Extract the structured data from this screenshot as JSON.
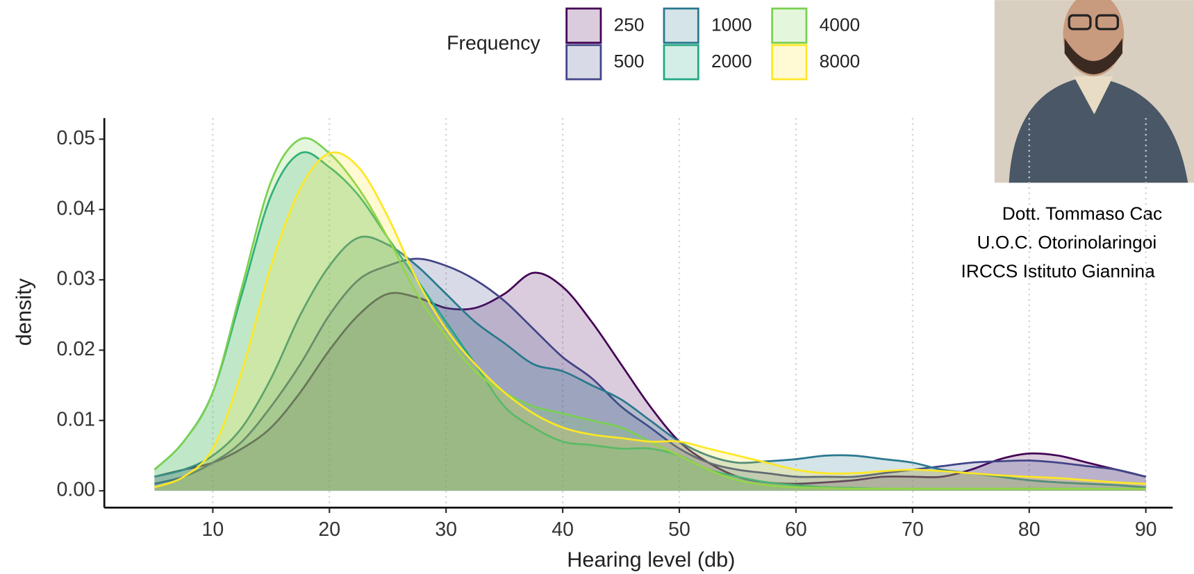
{
  "chart_data": {
    "type": "density",
    "x_label": "Hearing level (db)",
    "y_label": "density",
    "legend_title": "Frequency",
    "legend_position": "top",
    "x": [
      5,
      7.5,
      10,
      12.5,
      15,
      17.5,
      20,
      22.5,
      25,
      27.5,
      30,
      32.5,
      35,
      37.5,
      40,
      42.5,
      45,
      47.5,
      50,
      52.5,
      55,
      57.5,
      60,
      62.5,
      65,
      67.5,
      70,
      72.5,
      75,
      77.5,
      80,
      82.5,
      85,
      87.5,
      90
    ],
    "series": [
      {
        "name": "250",
        "color": "#440154",
        "values": [
          0.002,
          0.003,
          0.004,
          0.006,
          0.009,
          0.014,
          0.02,
          0.025,
          0.028,
          0.0275,
          0.026,
          0.026,
          0.028,
          0.031,
          0.029,
          0.024,
          0.018,
          0.012,
          0.007,
          0.004,
          0.002,
          0.0012,
          0.001,
          0.0012,
          0.0015,
          0.002,
          0.002,
          0.002,
          0.003,
          0.0045,
          0.0053,
          0.005,
          0.004,
          0.003,
          0.002
        ]
      },
      {
        "name": "500",
        "color": "#414487",
        "values": [
          0.001,
          0.002,
          0.004,
          0.007,
          0.012,
          0.018,
          0.025,
          0.03,
          0.032,
          0.033,
          0.032,
          0.03,
          0.027,
          0.023,
          0.019,
          0.016,
          0.012,
          0.009,
          0.006,
          0.004,
          0.003,
          0.0025,
          0.002,
          0.002,
          0.002,
          0.0025,
          0.003,
          0.0035,
          0.004,
          0.0042,
          0.0043,
          0.004,
          0.0035,
          0.003,
          0.002
        ]
      },
      {
        "name": "1000",
        "color": "#2a788e",
        "values": [
          0.002,
          0.003,
          0.005,
          0.009,
          0.016,
          0.025,
          0.032,
          0.036,
          0.035,
          0.032,
          0.028,
          0.024,
          0.021,
          0.018,
          0.017,
          0.015,
          0.013,
          0.01,
          0.007,
          0.005,
          0.004,
          0.0042,
          0.0045,
          0.005,
          0.005,
          0.0045,
          0.004,
          0.003,
          0.0025,
          0.002,
          0.0015,
          0.0012,
          0.001,
          0.0008,
          0.0005
        ]
      },
      {
        "name": "2000",
        "color": "#22a884",
        "values": [
          0.003,
          0.007,
          0.014,
          0.028,
          0.042,
          0.048,
          0.046,
          0.042,
          0.036,
          0.03,
          0.024,
          0.018,
          0.012,
          0.009,
          0.007,
          0.0065,
          0.006,
          0.006,
          0.005,
          0.003,
          0.002,
          0.0012,
          0.0008,
          0.0005,
          0.0004,
          0.0003,
          0.0003,
          0.0003,
          0.0003,
          0.0003,
          0.0003,
          0.0003,
          0.0003,
          0.0003,
          0.0003
        ]
      },
      {
        "name": "4000",
        "color": "#7ad151",
        "values": [
          0.003,
          0.007,
          0.014,
          0.029,
          0.044,
          0.05,
          0.048,
          0.043,
          0.036,
          0.028,
          0.022,
          0.017,
          0.014,
          0.012,
          0.011,
          0.01,
          0.009,
          0.007,
          0.005,
          0.003,
          0.0015,
          0.0008,
          0.0005,
          0.0004,
          0.0003,
          0.0003,
          0.0003,
          0.0003,
          0.0003,
          0.0003,
          0.0003,
          0.0003,
          0.0003,
          0.0003,
          0.0003
        ]
      },
      {
        "name": "8000",
        "color": "#fde725",
        "values": [
          0.0005,
          0.002,
          0.006,
          0.017,
          0.032,
          0.043,
          0.048,
          0.046,
          0.039,
          0.03,
          0.023,
          0.018,
          0.014,
          0.011,
          0.009,
          0.008,
          0.0075,
          0.007,
          0.007,
          0.006,
          0.005,
          0.004,
          0.003,
          0.0025,
          0.0025,
          0.0028,
          0.003,
          0.0028,
          0.0025,
          0.0022,
          0.002,
          0.0018,
          0.0015,
          0.0012,
          0.001
        ]
      }
    ],
    "xlim": [
      0.7,
      92.3
    ],
    "ylim": [
      -0.0024,
      0.053
    ],
    "xticks": [
      10,
      20,
      30,
      40,
      50,
      60,
      70,
      80,
      90
    ],
    "yticks": [
      {
        "value": 0,
        "label": "0.00"
      },
      {
        "value": 0.01,
        "label": "0.01"
      },
      {
        "value": 0.02,
        "label": "0.02"
      },
      {
        "value": 0.03,
        "label": "0.03"
      },
      {
        "value": 0.04,
        "label": "0.04"
      },
      {
        "value": 0.05,
        "label": "0.05"
      }
    ],
    "grid": true
  },
  "caption": [
    "Dott. Tommaso Cac",
    "U.O.C. Otorinolaringoi",
    "IRCCS Istituto Giannina"
  ]
}
